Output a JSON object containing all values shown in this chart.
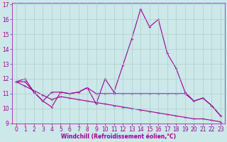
{
  "xlabel": "Windchill (Refroidissement éolien,°C)",
  "x": [
    0,
    1,
    2,
    3,
    4,
    5,
    6,
    7,
    8,
    9,
    10,
    11,
    12,
    13,
    14,
    15,
    16,
    17,
    18,
    19,
    20,
    21,
    22,
    23
  ],
  "line1": [
    11.8,
    12.0,
    11.1,
    10.5,
    11.1,
    11.1,
    11.0,
    11.1,
    11.4,
    10.3,
    12.0,
    11.1,
    12.9,
    14.7,
    16.7,
    15.5,
    16.0,
    13.7,
    12.7,
    11.1,
    10.5,
    10.7,
    10.2,
    9.5
  ],
  "line2": [
    11.8,
    11.8,
    11.1,
    10.5,
    10.1,
    11.1,
    11.0,
    11.1,
    11.4,
    11.0,
    11.0,
    11.0,
    11.0,
    11.0,
    11.0,
    11.0,
    11.0,
    11.0,
    11.0,
    11.0,
    10.5,
    10.7,
    10.2,
    9.5
  ],
  "line3": [
    11.8,
    11.5,
    11.2,
    10.9,
    10.6,
    10.8,
    10.7,
    10.6,
    10.5,
    10.4,
    10.3,
    10.2,
    10.1,
    10.0,
    9.9,
    9.8,
    9.7,
    9.6,
    9.5,
    9.4,
    9.3,
    9.3,
    9.2,
    9.1
  ],
  "color": "#990099",
  "bg_color": "#cce8e8",
  "grid_color": "#b0cccc",
  "ylim": [
    9,
    17
  ],
  "xlim": [
    -0.5,
    23.5
  ],
  "yticks": [
    9,
    10,
    11,
    12,
    13,
    14,
    15,
    16,
    17
  ],
  "xticks": [
    0,
    1,
    2,
    3,
    4,
    5,
    6,
    7,
    8,
    9,
    10,
    11,
    12,
    13,
    14,
    15,
    16,
    17,
    18,
    19,
    20,
    21,
    22,
    23
  ],
  "tick_fontsize": 5.5,
  "xlabel_fontsize": 5.5
}
